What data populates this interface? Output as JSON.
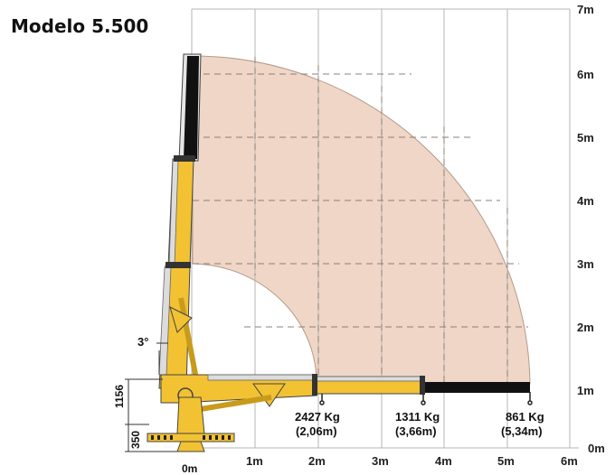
{
  "title": "Modelo 5.500",
  "colors": {
    "envelope_fill": "#efd6c6",
    "boom_yellow": "#f2c233",
    "boom_black": "#111111",
    "grid": "#b5b5b5",
    "outline": "#444444"
  },
  "x_axis": {
    "ticks": [
      "0m",
      "1m",
      "2m",
      "3m",
      "4m",
      "5m",
      "6m"
    ]
  },
  "y_axis": {
    "ticks": [
      "0m",
      "1m",
      "2m",
      "3m",
      "4m",
      "5m",
      "6m",
      "7m"
    ]
  },
  "dimensions": {
    "height_base": "1156",
    "height_foot": "350",
    "boom_angle": "3°"
  },
  "load_points": [
    {
      "load": "2427 Kg",
      "reach": "(2,06m)",
      "reach_m": 2.06
    },
    {
      "load": "1311 Kg",
      "reach": "(3,66m)",
      "reach_m": 3.66
    },
    {
      "load": "861 Kg",
      "reach": "(5,34m)",
      "reach_m": 5.34
    }
  ]
}
